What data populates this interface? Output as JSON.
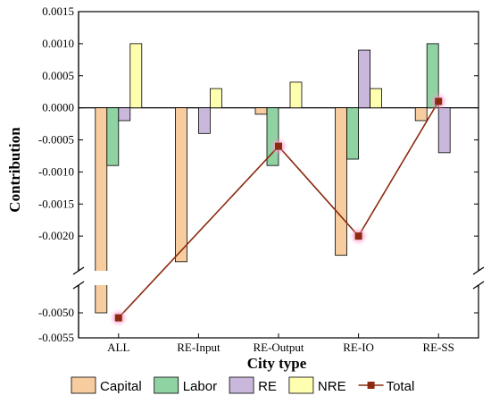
{
  "chart_data": {
    "type": "bar",
    "xlabel": "City type",
    "ylabel": "Contribution",
    "categories": [
      "ALL",
      "RE-Input",
      "RE-Output",
      "RE-IO",
      "RE-SS"
    ],
    "axis_break": {
      "upper_segment": [
        -0.0025,
        0.0015
      ],
      "lower_segment": [
        -0.0055,
        -0.0045
      ],
      "upper_ticks": [
        "0.0015",
        "0.0010",
        "0.0005",
        "0.0000",
        "-0.0005",
        "-0.0010",
        "-0.0015",
        "-0.0020"
      ],
      "lower_ticks": [
        "-0.0050",
        "-0.0055"
      ]
    },
    "series": [
      {
        "name": "Capital",
        "kind": "bar",
        "color": "#F7CDA0",
        "values": [
          -0.005,
          -0.0024,
          -0.0001,
          -0.0023,
          -0.0002
        ]
      },
      {
        "name": "Labor",
        "kind": "bar",
        "color": "#8FD3A3",
        "values": [
          -0.0009,
          0,
          -0.0009,
          -0.0008,
          0.001
        ]
      },
      {
        "name": "RE",
        "kind": "bar",
        "color": "#C9B8DC",
        "values": [
          -0.0002,
          -0.0004,
          0,
          0.0009,
          -0.0007
        ]
      },
      {
        "name": "NRE",
        "kind": "bar",
        "color": "#FFFFB0",
        "values": [
          0.001,
          0.0003,
          0.0004,
          0.0003,
          0
        ]
      },
      {
        "name": "Total",
        "kind": "line",
        "color": "#8B2A0E",
        "values": [
          -0.0051,
          null,
          -0.0006,
          -0.002,
          0.0001
        ]
      }
    ],
    "grid": false,
    "legend_position": "bottom"
  }
}
